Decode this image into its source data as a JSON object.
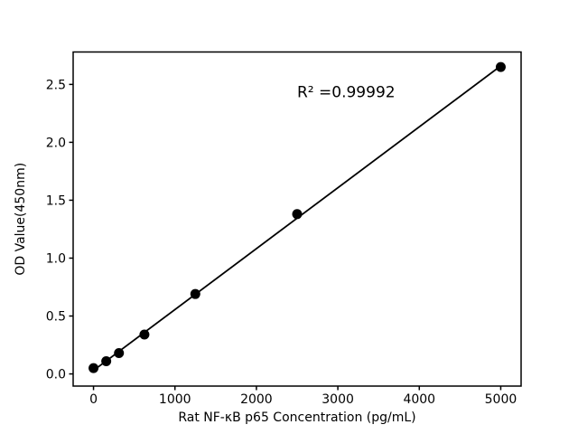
{
  "figure": {
    "background": "#ffffff"
  },
  "chart_data": {
    "type": "scatter",
    "title": "",
    "xlabel": "Rat NF-κB p65 Concentration (pg/mL)",
    "ylabel": "OD Value(450nm)",
    "series": [
      {
        "name": "standard-points",
        "x": [
          0,
          156.25,
          312.5,
          625,
          1250,
          2500,
          5000
        ],
        "y": [
          0.05,
          0.11,
          0.18,
          0.34,
          0.69,
          1.38,
          2.65
        ]
      }
    ],
    "trendline": {
      "x": [
        0,
        5000
      ],
      "y": [
        0.03,
        2.66
      ]
    },
    "annotation": {
      "text": "R² =0.99992",
      "x": 2500,
      "y": 2.39
    },
    "xticks": {
      "values": [
        0,
        1000,
        2000,
        3000,
        4000,
        5000
      ],
      "labels": [
        "0",
        "1000",
        "2000",
        "3000",
        "4000",
        "5000"
      ]
    },
    "yticks": {
      "values": [
        0.0,
        0.5,
        1.0,
        1.5,
        2.0,
        2.5
      ],
      "labels": [
        "0.0",
        "0.5",
        "1.0",
        "1.5",
        "2.0",
        "2.5"
      ]
    },
    "xlim": [
      -250,
      5250
    ],
    "ylim": [
      -0.105,
      2.78
    ],
    "grid": false,
    "legend_position": "none",
    "marker_color": "#000000",
    "line_color": "#000000",
    "axis_color": "#000000"
  }
}
